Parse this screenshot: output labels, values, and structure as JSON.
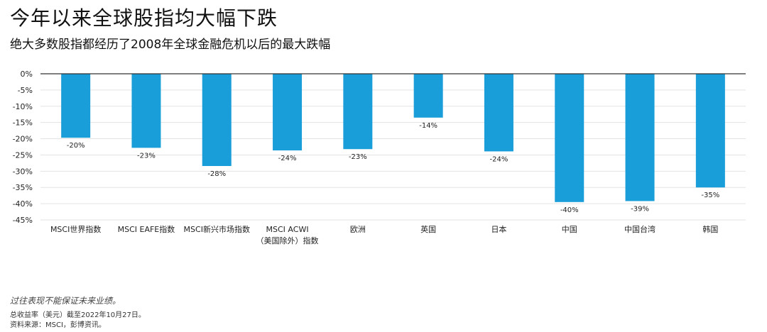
{
  "title": "今年以来全球股指均大幅下跌",
  "subtitle": "绝大多数股指都经历了2008年全球金融危机以后的最大跌幅",
  "footer": {
    "disclaimer": "过往表现不能保证未来业绩。",
    "note": "总收益率（美元）截至2022年10月27日。",
    "source": "资料来源：MSCI，彭博资讯。"
  },
  "colors": {
    "bar": "#1a9ed9",
    "grid": "#e3e3e3",
    "axis": "#333333",
    "text": "#222222"
  },
  "chart_data": {
    "type": "bar",
    "categories": [
      "MSCI世界指数",
      "MSCI EAFE指数",
      "MSCI新兴市场指数",
      "MSCI ACWI\n（美国除外）指数",
      "欧洲",
      "英国",
      "日本",
      "中国",
      "中国台湾",
      "韩国"
    ],
    "values": [
      -19.7,
      -22.8,
      -28.4,
      -23.6,
      -23.2,
      -13.5,
      -23.9,
      -39.5,
      -39.2,
      -35.0
    ],
    "data_labels": [
      "-20%",
      "-23%",
      "-28%",
      "-24%",
      "-23%",
      "-14%",
      "-24%",
      "-40%",
      "-39%",
      "-35%"
    ],
    "y_ticks": [
      0,
      -5,
      -10,
      -15,
      -20,
      -25,
      -30,
      -35,
      -40,
      -45
    ],
    "y_tick_labels": [
      "0%",
      "-5%",
      "-10%",
      "-15%",
      "-20%",
      "-25%",
      "-30%",
      "-35%",
      "-40%",
      "-45%"
    ],
    "ylim": [
      -45,
      0
    ],
    "grid": true,
    "legend": "none"
  }
}
